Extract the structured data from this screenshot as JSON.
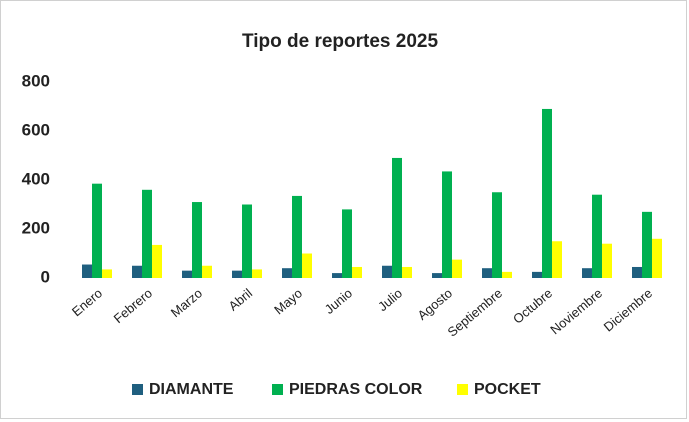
{
  "chart_data": {
    "type": "bar",
    "title": "Tipo de reportes 2025",
    "categories": [
      "Enero",
      "Febrero",
      "Marzo",
      "Abril",
      "Mayo",
      "Junio",
      "Julio",
      "Agosto",
      "Septiembre",
      "Octubre",
      "Noviembre",
      "Diciembre"
    ],
    "series": [
      {
        "name": "DIAMANTE",
        "color": "#1f5f7f",
        "values": [
          55,
          50,
          30,
          30,
          40,
          20,
          50,
          20,
          40,
          25,
          40,
          45
        ]
      },
      {
        "name": "PIEDRAS COLOR",
        "color": "#00b050",
        "values": [
          385,
          360,
          310,
          300,
          335,
          280,
          490,
          435,
          350,
          690,
          340,
          270
        ]
      },
      {
        "name": "POCKET",
        "color": "#ffff00",
        "values": [
          35,
          135,
          50,
          35,
          100,
          45,
          45,
          75,
          25,
          150,
          140,
          160
        ]
      }
    ],
    "ylim": [
      0,
      800
    ],
    "yticks": [
      0,
      200,
      400,
      600,
      800
    ],
    "grid": false,
    "legend": "bottom"
  }
}
